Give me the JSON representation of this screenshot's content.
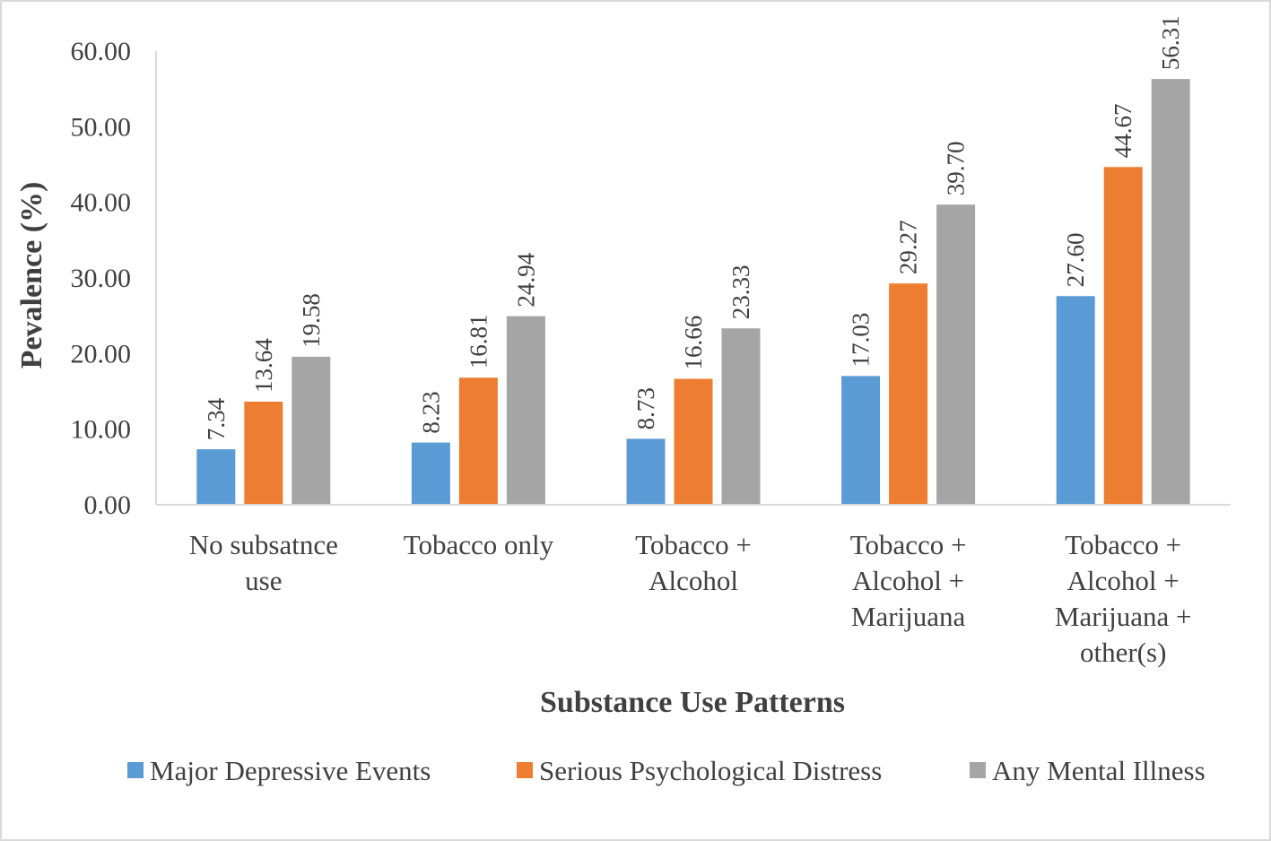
{
  "chart_data": {
    "type": "bar",
    "title": "",
    "xlabel": "Substance Use Patterns",
    "ylabel": "Pevalence (%)",
    "ylim": [
      0,
      60
    ],
    "yticks": [
      "0.00",
      "10.00",
      "20.00",
      "30.00",
      "40.00",
      "50.00",
      "60.00"
    ],
    "grid": false,
    "legend_position": "bottom",
    "categories": [
      [
        "No subsatnce",
        "use"
      ],
      [
        "Tobacco only"
      ],
      [
        "Tobacco +",
        "Alcohol"
      ],
      [
        "Tobacco +",
        "Alcohol +",
        "Marijuana"
      ],
      [
        "Tobacco +",
        "Alcohol +",
        "Marijuana +",
        "other(s)"
      ]
    ],
    "series": [
      {
        "name": "Major Depressive Events",
        "color": "#5b9bd5",
        "values": [
          7.34,
          8.23,
          8.73,
          17.03,
          27.6
        ],
        "labels": [
          "7.34",
          "8.23",
          "8.73",
          "17.03",
          "27.60"
        ]
      },
      {
        "name": "Serious Psychological Distress",
        "color": "#ed7d31",
        "values": [
          13.64,
          16.81,
          16.66,
          29.27,
          44.67
        ],
        "labels": [
          "13.64",
          "16.81",
          "16.66",
          "29.27",
          "44.67"
        ]
      },
      {
        "name": "Any Mental Illness",
        "color": "#a5a5a5",
        "values": [
          19.58,
          24.94,
          23.33,
          39.7,
          56.31
        ],
        "labels": [
          "19.58",
          "24.94",
          "23.33",
          "39.70",
          "56.31"
        ]
      }
    ]
  }
}
